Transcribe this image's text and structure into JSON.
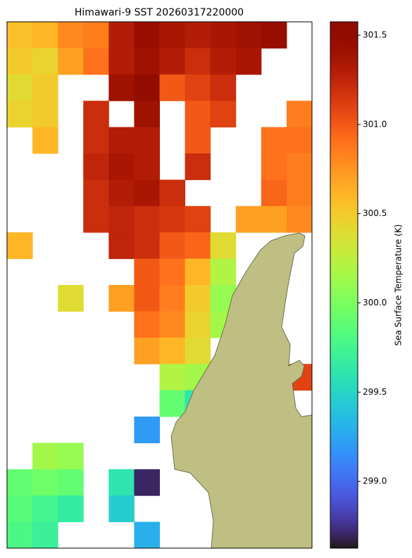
{
  "chart_data": {
    "type": "heatmap",
    "title": "Himawari-9 SST 20260317220000",
    "colormap": "turbo",
    "values": [
      [
        300.55,
        300.6,
        300.8,
        300.85,
        301.3,
        301.45,
        301.35,
        301.3,
        301.35,
        301.4,
        301.45,
        null
      ],
      [
        300.5,
        300.45,
        300.7,
        300.9,
        301.3,
        301.4,
        301.3,
        301.2,
        301.3,
        301.35,
        null,
        null
      ],
      [
        300.4,
        300.5,
        null,
        null,
        301.4,
        301.5,
        301.0,
        301.1,
        301.2,
        null,
        null,
        null
      ],
      [
        300.45,
        300.5,
        null,
        301.2,
        null,
        301.4,
        null,
        301.0,
        301.1,
        null,
        null,
        300.85
      ],
      [
        null,
        300.6,
        null,
        301.2,
        301.3,
        301.3,
        null,
        301.0,
        null,
        null,
        300.9,
        300.9
      ],
      [
        null,
        null,
        null,
        301.25,
        301.35,
        301.3,
        null,
        301.2,
        null,
        null,
        300.9,
        300.85
      ],
      [
        null,
        null,
        null,
        301.2,
        301.3,
        301.35,
        301.2,
        null,
        null,
        null,
        300.95,
        300.85
      ],
      [
        null,
        null,
        null,
        301.2,
        301.25,
        301.2,
        301.15,
        301.1,
        null,
        300.7,
        300.7,
        300.8
      ],
      [
        300.6,
        null,
        null,
        null,
        301.25,
        301.2,
        301.0,
        300.95,
        300.4,
        null,
        null,
        null
      ],
      [
        null,
        null,
        null,
        null,
        null,
        301.0,
        300.9,
        300.6,
        300.2,
        null,
        null,
        null
      ],
      [
        null,
        null,
        300.4,
        null,
        300.7,
        301.0,
        300.85,
        300.5,
        300.1,
        null,
        null,
        null
      ],
      [
        null,
        null,
        null,
        null,
        null,
        300.9,
        300.8,
        300.45,
        300.15,
        null,
        null,
        null
      ],
      [
        null,
        null,
        null,
        null,
        null,
        300.7,
        300.6,
        300.4,
        null,
        null,
        null,
        null
      ],
      [
        null,
        null,
        null,
        null,
        null,
        null,
        300.2,
        300.15,
        null,
        null,
        null,
        301.1
      ],
      [
        null,
        null,
        null,
        null,
        null,
        null,
        299.9,
        299.6,
        null,
        null,
        null,
        null
      ],
      [
        null,
        null,
        null,
        null,
        null,
        299.2,
        null,
        null,
        null,
        null,
        null,
        null
      ],
      [
        null,
        300.15,
        300.1,
        null,
        null,
        null,
        null,
        null,
        null,
        null,
        null,
        null
      ],
      [
        299.9,
        299.95,
        299.9,
        null,
        299.6,
        298.7,
        null,
        null,
        null,
        null,
        null,
        null
      ],
      [
        299.85,
        299.75,
        299.65,
        null,
        299.45,
        null,
        null,
        null,
        null,
        null,
        null,
        null
      ],
      [
        299.8,
        299.7,
        null,
        null,
        null,
        299.3,
        null,
        null,
        null,
        null,
        null,
        null
      ]
    ],
    "colorbar": {
      "label": "Sea Surface Temperature (K)",
      "lim": [
        298.626,
        301.575
      ],
      "ticks": [
        {
          "value": 299,
          "label": "299.0"
        },
        299.5,
        {
          "value": 300,
          "label": "300.0"
        },
        300.5,
        {
          "value": 301,
          "label": "301.0"
        },
        301.5
      ]
    }
  }
}
